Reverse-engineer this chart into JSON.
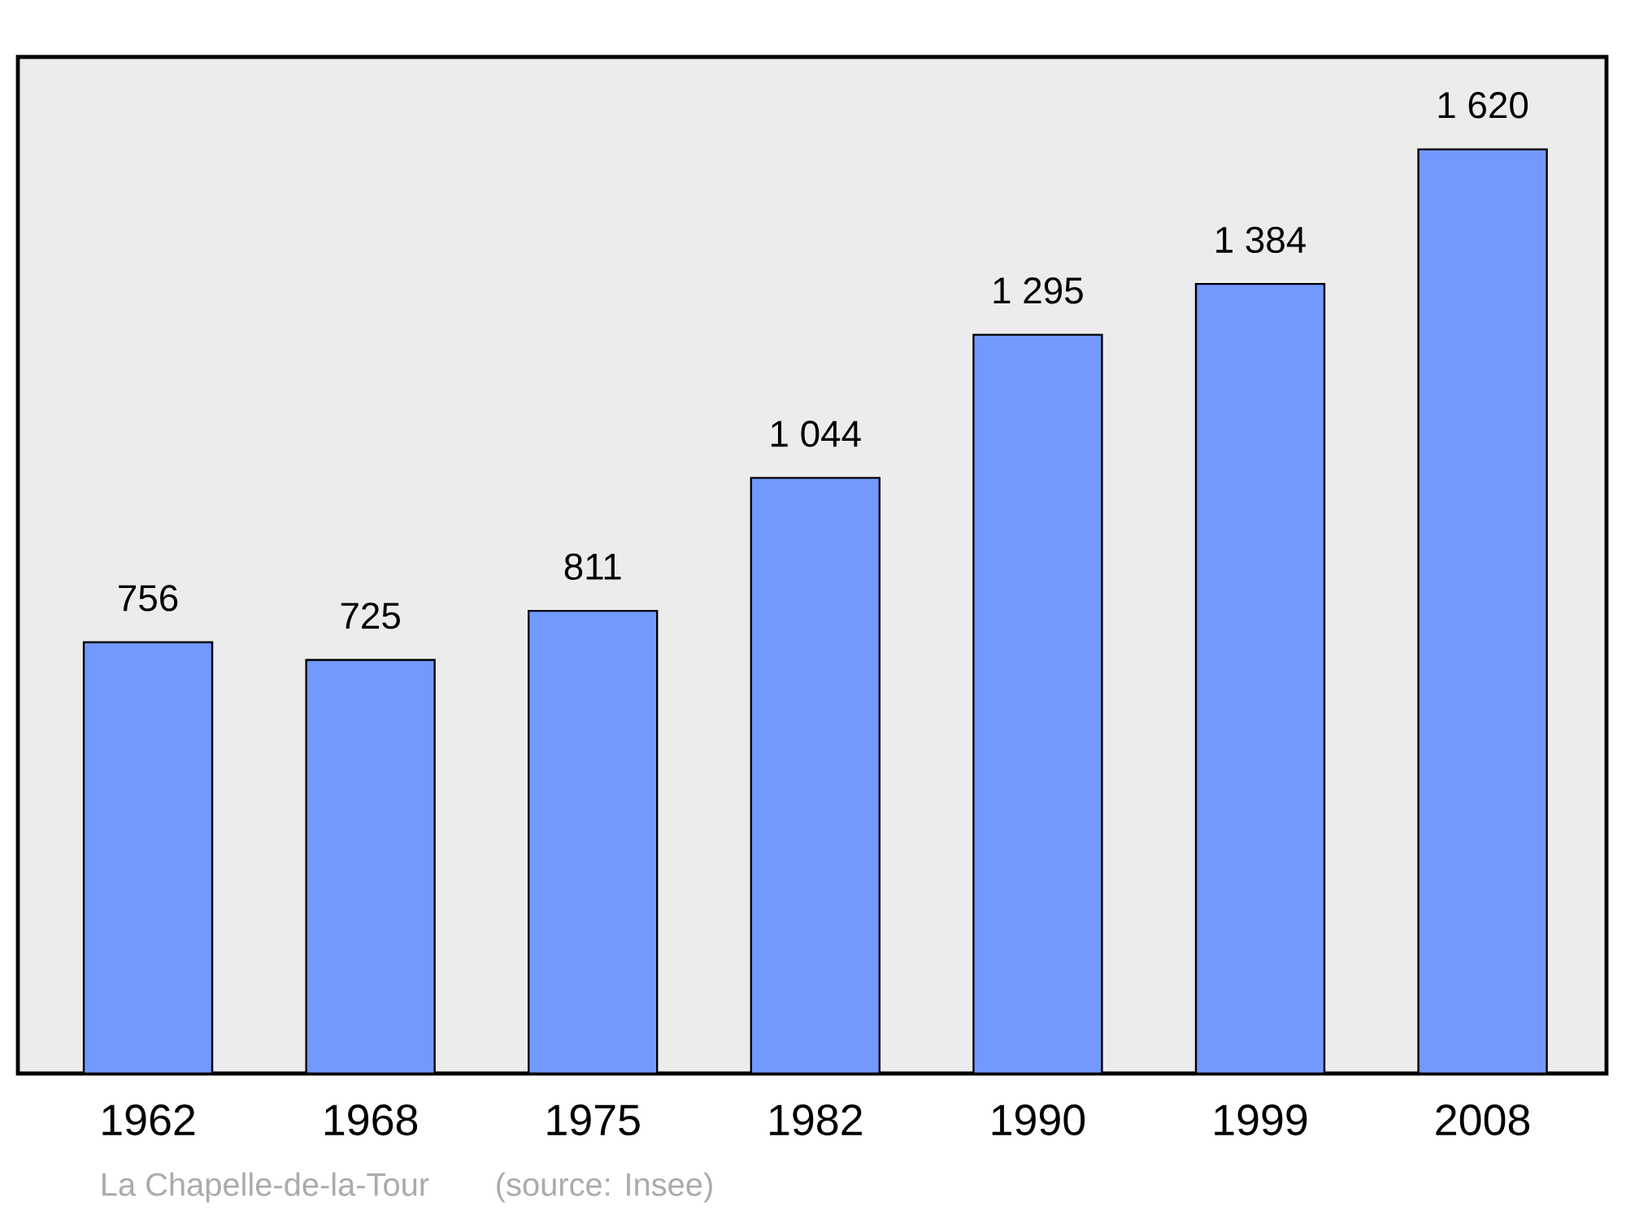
{
  "chart_data": {
    "type": "bar",
    "categories": [
      "1962",
      "1968",
      "1975",
      "1982",
      "1990",
      "1999",
      "2008"
    ],
    "values": [
      756,
      725,
      811,
      1044,
      1295,
      1384,
      1620
    ],
    "value_labels": [
      "756",
      "725",
      "811",
      "1 044",
      "1 295",
      "1 384",
      "1 620"
    ],
    "color": "#7299ff",
    "annotations": [
      "La Chapelle-de-la-Tour",
      "(source: Insee)"
    ]
  }
}
